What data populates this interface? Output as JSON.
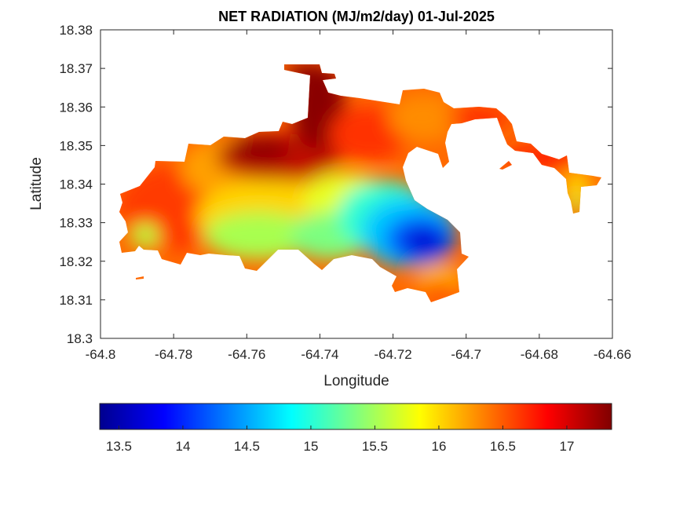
{
  "figure": {
    "title": "NET RADIATION (MJ/m2/day) 01-Jul-2025",
    "xlabel": "Longitude",
    "ylabel": "Latitude"
  },
  "map": {
    "x_ticks": [
      "-64.8",
      "-64.78",
      "-64.76",
      "-64.74",
      "-64.72",
      "-64.7",
      "-64.68",
      "-64.66"
    ],
    "y_ticks": [
      "18.38",
      "18.37",
      "18.36",
      "18.35",
      "18.34",
      "18.33",
      "18.32",
      "18.31",
      "18.3"
    ],
    "xlim": [
      -64.8,
      -64.66
    ],
    "ylim": [
      18.3,
      18.38
    ],
    "colormap": "jet",
    "fill": "filled contour of net radiation over the island outline"
  },
  "colorbar": {
    "ticks": [
      "13.5",
      "14",
      "14.5",
      "15",
      "15.5",
      "16",
      "16.5",
      "17"
    ],
    "min": 13.35,
    "max": 17.35,
    "orientation": "horizontal",
    "colors": [
      "#00008f",
      "#0000ff",
      "#00ffff",
      "#ffff00",
      "#ff0000",
      "#800000"
    ]
  }
}
